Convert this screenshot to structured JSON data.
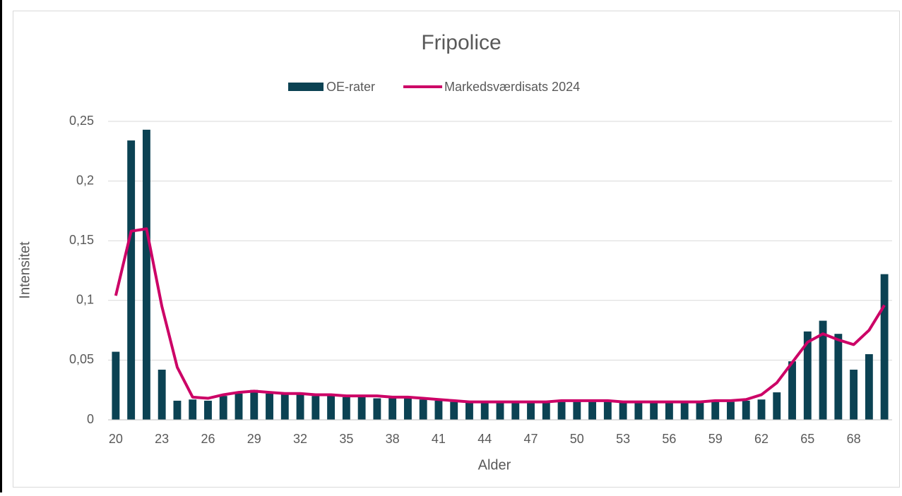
{
  "chart_data": {
    "type": "bar_line",
    "title": "Fripolice",
    "x_label": "Alder",
    "y_label": "Intensitet",
    "categories": [
      "20",
      null,
      null,
      "23",
      null,
      null,
      "26",
      null,
      null,
      "29",
      null,
      null,
      "32",
      null,
      null,
      "35",
      null,
      null,
      "38",
      null,
      null,
      "41",
      null,
      null,
      "44",
      null,
      null,
      "47",
      null,
      null,
      "50",
      null,
      null,
      "53",
      null,
      null,
      "56",
      null,
      null,
      "59",
      null,
      null,
      "62",
      null,
      null,
      "65",
      null,
      null,
      "68",
      null,
      null
    ],
    "series": [
      {
        "name": "OE-rater",
        "kind": "bar",
        "color": "#0b4253",
        "values": [
          0.057,
          0.234,
          0.243,
          0.042,
          0.016,
          0.017,
          0.016,
          0.02,
          0.022,
          0.025,
          0.022,
          0.022,
          0.021,
          0.02,
          0.02,
          0.019,
          0.019,
          0.018,
          0.018,
          0.018,
          0.017,
          0.016,
          0.015,
          0.015,
          0.015,
          0.015,
          0.015,
          0.015,
          0.015,
          0.015,
          0.015,
          0.015,
          0.015,
          0.015,
          0.015,
          0.015,
          0.015,
          0.015,
          0.015,
          0.015,
          0.015,
          0.016,
          0.017,
          0.023,
          0.049,
          0.074,
          0.083,
          0.072,
          0.042,
          0.055,
          0.122
        ]
      },
      {
        "name": "Markedsværdisats 2024",
        "kind": "line",
        "color": "#cc0066",
        "values": [
          0.104,
          0.158,
          0.16,
          0.095,
          0.044,
          0.019,
          0.018,
          0.021,
          0.023,
          0.024,
          0.023,
          0.022,
          0.022,
          0.021,
          0.021,
          0.02,
          0.02,
          0.02,
          0.019,
          0.019,
          0.018,
          0.017,
          0.016,
          0.015,
          0.015,
          0.015,
          0.015,
          0.015,
          0.015,
          0.016,
          0.016,
          0.016,
          0.016,
          0.015,
          0.015,
          0.015,
          0.015,
          0.015,
          0.015,
          0.016,
          0.016,
          0.017,
          0.021,
          0.031,
          0.048,
          0.065,
          0.072,
          0.067,
          0.063,
          0.075,
          0.096
        ]
      }
    ],
    "ylim": [
      0,
      0.25
    ],
    "yticks": [
      0,
      {
        "value": 0.05,
        "label": "0,05"
      },
      {
        "value": 0.1,
        "label": "0,1"
      },
      {
        "value": 0.15,
        "label": "0,15"
      },
      {
        "value": 0.2,
        "label": "0,2"
      },
      {
        "value": 0.25,
        "label": "0,25"
      }
    ],
    "grid": true,
    "legend": "top"
  }
}
